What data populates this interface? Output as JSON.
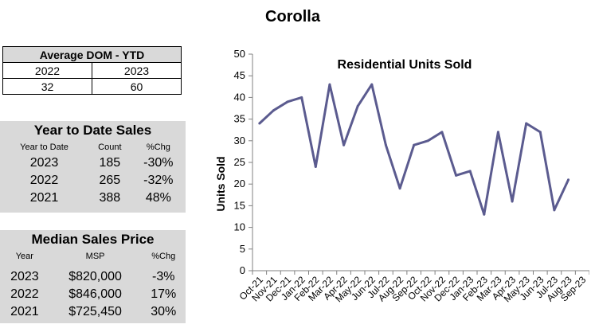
{
  "page_title": "Corolla",
  "dom": {
    "title": "Average DOM - YTD",
    "years": [
      "2022",
      "2023"
    ],
    "values": [
      "32",
      "60"
    ]
  },
  "ytd_sales": {
    "title": "Year to Date Sales",
    "headers": [
      "Year to Date",
      "Count",
      "%Chg"
    ],
    "rows": [
      [
        "2023",
        "185",
        "-30%"
      ],
      [
        "2022",
        "265",
        "-32%"
      ],
      [
        "2021",
        "388",
        "48%"
      ]
    ]
  },
  "median_price": {
    "title": "Median Sales Price",
    "headers": [
      "Year",
      "MSP",
      "%Chg"
    ],
    "rows": [
      [
        "2023",
        "$820,000",
        "-3%"
      ],
      [
        "2022",
        "$846,000",
        "17%"
      ],
      [
        "2021",
        "$725,450",
        "30%"
      ]
    ]
  },
  "chart_data": {
    "type": "line",
    "title": "Residential Units Sold",
    "xlabel": "",
    "ylabel": "Units Sold",
    "ylim": [
      0,
      50
    ],
    "yticks": [
      0,
      5,
      10,
      15,
      20,
      25,
      30,
      35,
      40,
      45,
      50
    ],
    "grid": false,
    "line_color": "#5b5b8f",
    "categories": [
      "Oct-21",
      "Nov-21",
      "Dec-21",
      "Jan-22",
      "Feb-22",
      "Mar-22",
      "Apr-22",
      "May-22",
      "Jun-22",
      "Jul-22",
      "Aug-22",
      "Sep-22",
      "Oct-22",
      "Nov-22",
      "Dec-22",
      "Jan-23",
      "Feb-23",
      "Mar-23",
      "Apr-23",
      "May-23",
      "Jun-23",
      "Jul-23",
      "Aug-23",
      "Sep-23"
    ],
    "series": [
      {
        "name": "Units Sold",
        "values": [
          34,
          37,
          39,
          40,
          24,
          43,
          29,
          38,
          43,
          29,
          19,
          29,
          30,
          32,
          22,
          23,
          13,
          32,
          16,
          34,
          32,
          14,
          21,
          null
        ]
      }
    ]
  }
}
